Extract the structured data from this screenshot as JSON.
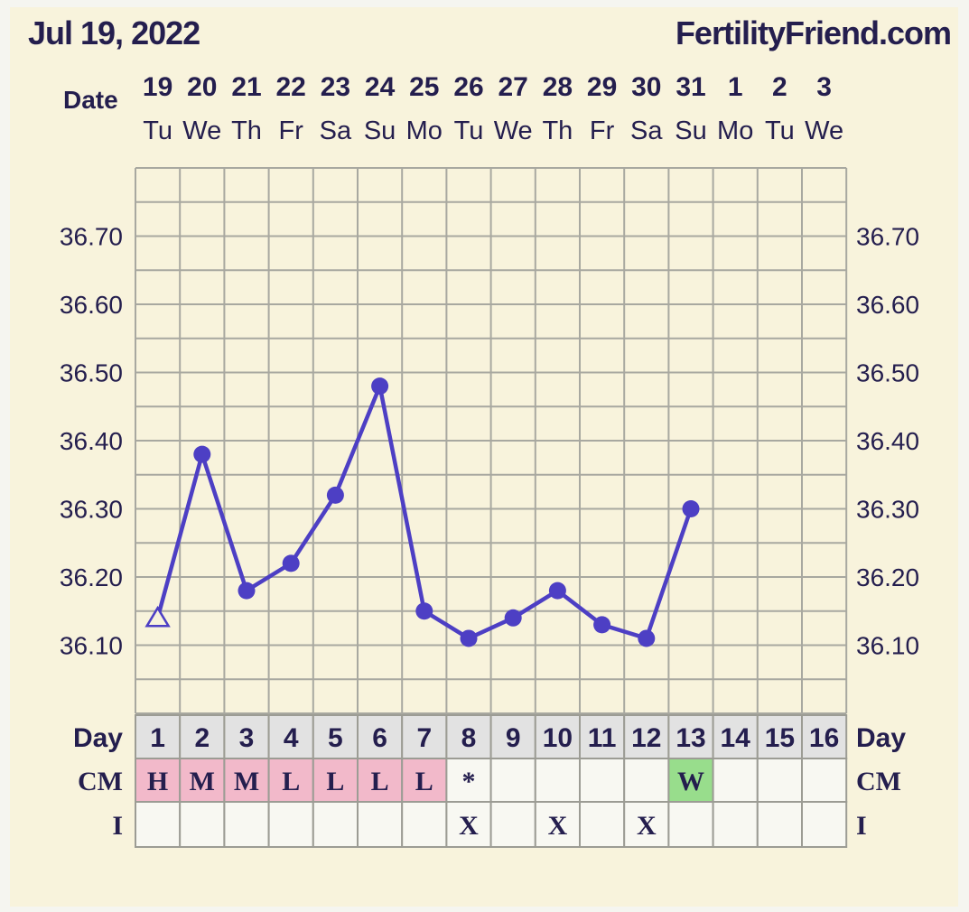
{
  "header": {
    "date": "Jul 19, 2022",
    "site": "FertilityFriend.com"
  },
  "labels": {
    "date_row": "Date",
    "day_row": "Day",
    "cm_row": "CM",
    "i_row": "I"
  },
  "colors": {
    "line": "#4d3fc4",
    "text": "#241e4e",
    "cm_pink": "#f2b9ca",
    "cm_green": "#98dd8c",
    "cell": "#f8f8f2",
    "grid": "#a8a8a0"
  },
  "chart_data": {
    "type": "line",
    "title": "",
    "y_unit": "temperature",
    "ylim": [
      36.0,
      36.8
    ],
    "y_ticks": [
      "36.70",
      "36.60",
      "36.50",
      "36.40",
      "36.30",
      "36.20",
      "36.10"
    ],
    "grid": true,
    "dates": [
      "19",
      "20",
      "21",
      "22",
      "23",
      "24",
      "25",
      "26",
      "27",
      "28",
      "29",
      "30",
      "31",
      "1",
      "2",
      "3"
    ],
    "weekdays": [
      "Tu",
      "We",
      "Th",
      "Fr",
      "Sa",
      "Su",
      "Mo",
      "Tu",
      "We",
      "Th",
      "Fr",
      "Sa",
      "Su",
      "Mo",
      "Tu",
      "We"
    ],
    "days": [
      "1",
      "2",
      "3",
      "4",
      "5",
      "6",
      "7",
      "8",
      "9",
      "10",
      "11",
      "12",
      "13",
      "14",
      "15",
      "16"
    ],
    "temperatures": [
      36.14,
      36.38,
      36.18,
      36.22,
      36.32,
      36.48,
      36.15,
      36.11,
      36.14,
      36.18,
      36.13,
      36.11,
      36.3,
      null,
      null,
      null
    ],
    "point_markers": [
      "triangle",
      "dot",
      "dot",
      "dot",
      "dot",
      "dot",
      "dot",
      "dot",
      "dot",
      "dot",
      "dot",
      "dot",
      "dot",
      null,
      null,
      null
    ],
    "cervical_mucus": [
      "H",
      "M",
      "M",
      "L",
      "L",
      "L",
      "L",
      "*",
      "",
      "",
      "",
      "",
      "W",
      "",
      "",
      ""
    ],
    "cm_colors": [
      "pink",
      "pink",
      "pink",
      "pink",
      "pink",
      "pink",
      "pink",
      "",
      "",
      "",
      "",
      "",
      "green",
      "",
      "",
      ""
    ],
    "intercourse": [
      "",
      "",
      "",
      "",
      "",
      "",
      "",
      "X",
      "",
      "X",
      "",
      "X",
      "",
      "",
      "",
      ""
    ]
  }
}
